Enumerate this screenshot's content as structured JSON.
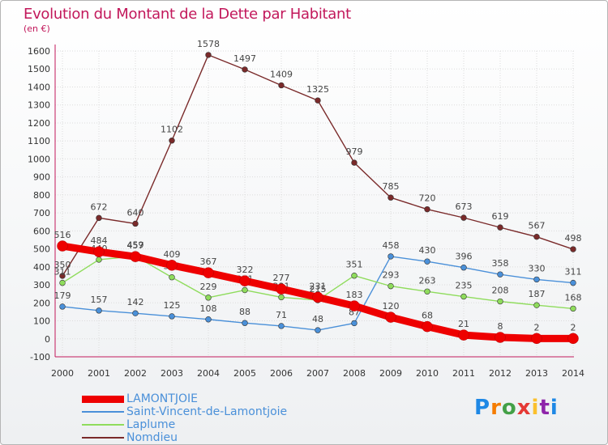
{
  "header": {
    "title": "Evolution du Montant de la Dette par Habitant",
    "unit": "(en €)"
  },
  "logo": {
    "text": "Proxiti",
    "letter_colors": [
      "#1e88e5",
      "#f57c00",
      "#43a047",
      "#e53935",
      "#fbc02d",
      "#8e24aa",
      "#1e88e5"
    ]
  },
  "chart_data": {
    "type": "line",
    "title": "Evolution du Montant de la Dette par Habitant",
    "ylabel": "(en €)",
    "xlabel": "",
    "x": [
      "2000",
      "2001",
      "2002",
      "2003",
      "2004",
      "2005",
      "2006",
      "2007",
      "2008",
      "2009",
      "2010",
      "2011",
      "2012",
      "2013",
      "2014"
    ],
    "ylim": [
      -100,
      1600
    ],
    "yticks": [
      "-100",
      "0",
      "100",
      "200",
      "300",
      "400",
      "500",
      "600",
      "700",
      "800",
      "900",
      "1000",
      "1100",
      "1200",
      "1300",
      "1400",
      "1500",
      "1600"
    ],
    "grid": true,
    "legend_position": "bottom-left",
    "series": [
      {
        "name": "LAMONTJOIE",
        "color": "#ee0000",
        "values": [
          516,
          484,
          457,
          409,
          367,
          322,
          277,
          231,
          183,
          120,
          68,
          21,
          8,
          2,
          2
        ]
      },
      {
        "name": "Saint-Vincent-de-Lamontjoie",
        "color": "#4a90d9",
        "values": [
          179,
          157,
          142,
          125,
          108,
          88,
          71,
          48,
          87,
          458,
          430,
          396,
          358,
          330,
          311
        ]
      },
      {
        "name": "Laplume",
        "color": "#8fdc5c",
        "values": [
          311,
          440,
          459,
          342,
          229,
          271,
          231,
          215,
          351,
          293,
          263,
          235,
          208,
          187,
          168
        ]
      },
      {
        "name": "Nomdieu",
        "color": "#7a2a2a",
        "values": [
          350,
          672,
          640,
          1102,
          1578,
          1497,
          1409,
          1325,
          979,
          785,
          720,
          673,
          619,
          567,
          498
        ]
      }
    ]
  }
}
